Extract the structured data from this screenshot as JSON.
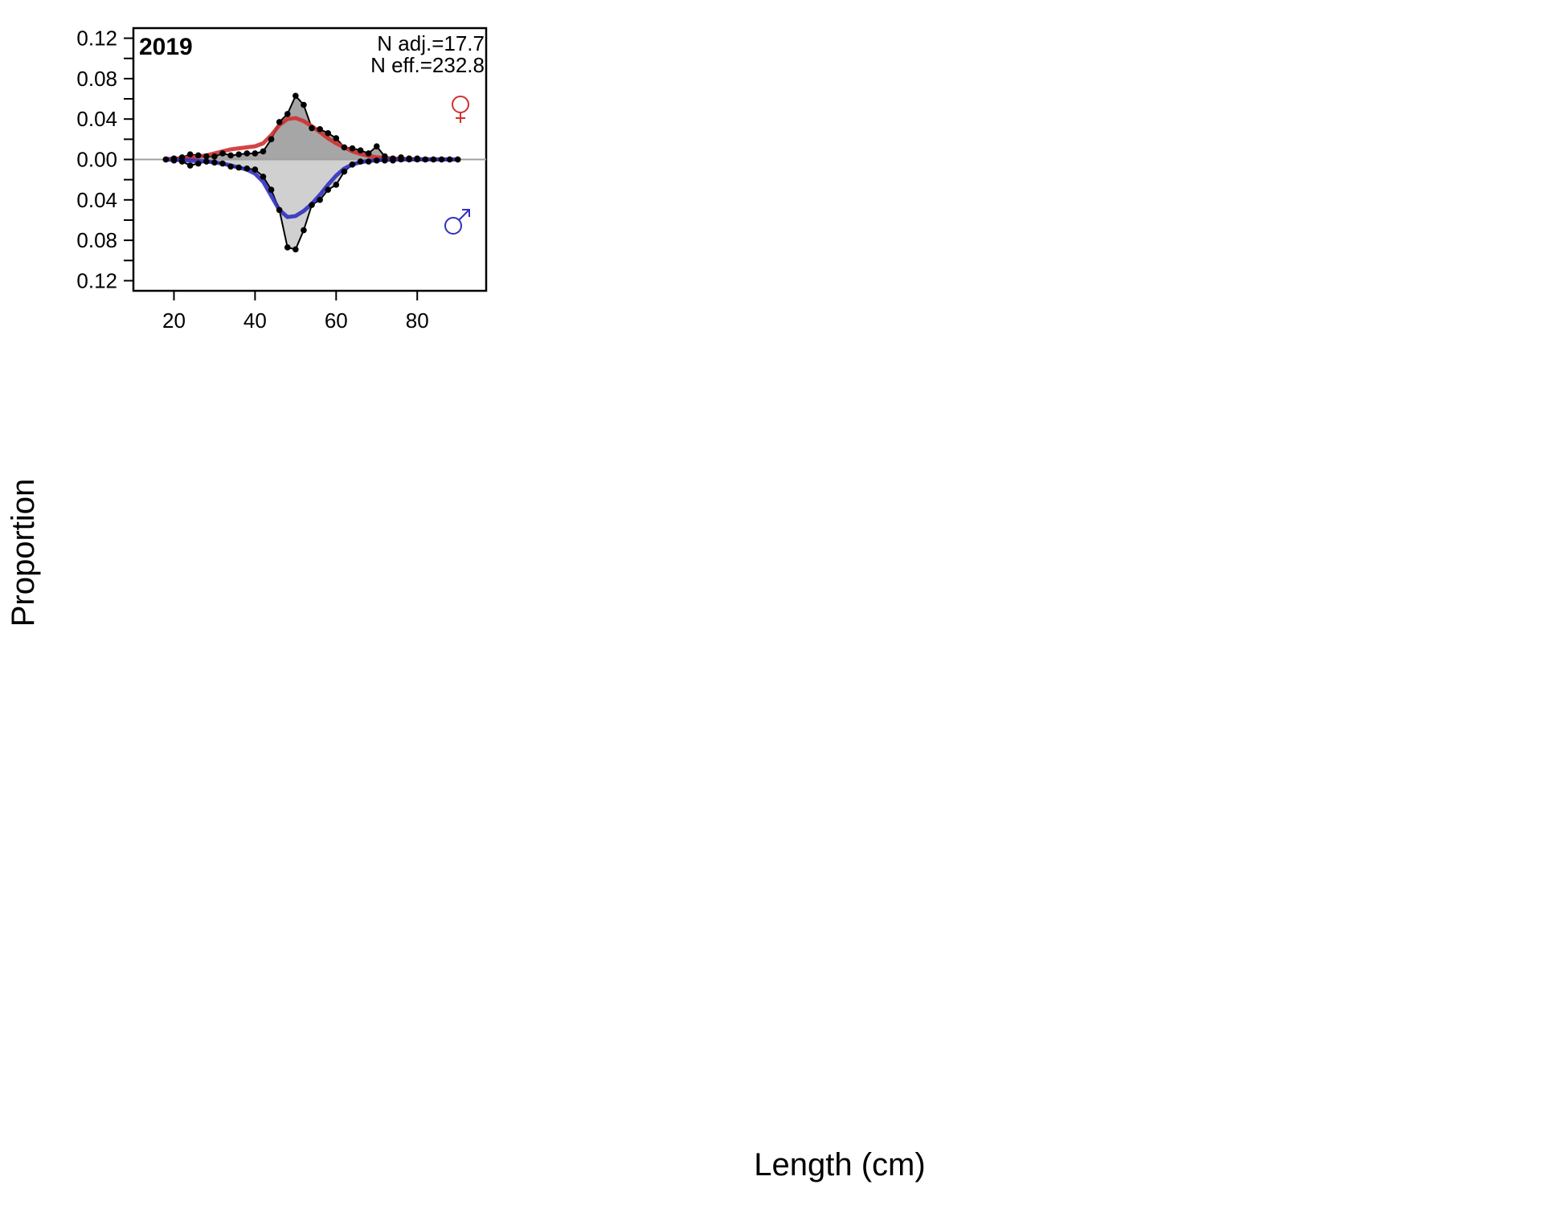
{
  "chart_data": {
    "type": "line",
    "xlabel": "Length (cm)",
    "ylabel": "Proportion",
    "panels": [
      {
        "year": "2019",
        "n_adj": "N adj.=17.7",
        "n_eff": "N eff.=232.8",
        "xlim": [
          10,
          97
        ],
        "ylim": [
          -0.13,
          0.13
        ],
        "x_ticks": [
          20,
          40,
          60,
          80
        ],
        "y_ticks": [
          0.12,
          0.08,
          0.04,
          0.0,
          -0.04,
          -0.08,
          -0.12
        ],
        "y_tick_labels": [
          "0.12",
          "0.08",
          "0.04",
          "0.00",
          "0.04",
          "0.08",
          "0.12"
        ],
        "y_minor_ticks": [
          0.1,
          0.06,
          0.02,
          -0.02,
          -0.06,
          -0.1
        ],
        "zero_line": true,
        "series": [
          {
            "name": "Female",
            "symbol": "♀",
            "color": "#D03030",
            "role": "observed",
            "x": [
              18,
              20,
              22,
              24,
              26,
              28,
              30,
              32,
              34,
              36,
              38,
              40,
              42,
              44,
              46,
              48,
              50,
              52,
              54,
              56,
              58,
              60,
              62,
              64,
              66,
              68,
              70,
              72,
              74,
              76,
              78,
              80,
              82,
              84,
              86,
              88,
              90
            ],
            "values": [
              0.0,
              0.001,
              0.002,
              0.005,
              0.004,
              0.003,
              0.003,
              0.006,
              0.004,
              0.005,
              0.006,
              0.006,
              0.008,
              0.02,
              0.037,
              0.045,
              0.063,
              0.054,
              0.031,
              0.03,
              0.026,
              0.021,
              0.012,
              0.011,
              0.009,
              0.006,
              0.013,
              0.003,
              0.001,
              0.002,
              0.001,
              0.001,
              0.0,
              0.0,
              0.0,
              0.0,
              0.0
            ]
          },
          {
            "name": "Female",
            "color": "#D03030",
            "role": "expected",
            "x": [
              18,
              20,
              22,
              24,
              26,
              28,
              30,
              32,
              34,
              36,
              38,
              40,
              42,
              44,
              46,
              48,
              50,
              52,
              54,
              56,
              58,
              60,
              62,
              64,
              66,
              68,
              70,
              72,
              74,
              76,
              78,
              80,
              82,
              84,
              86,
              88,
              90
            ],
            "values": [
              0.0005,
              0.0008,
              0.0012,
              0.002,
              0.003,
              0.004,
              0.006,
              0.008,
              0.01,
              0.011,
              0.012,
              0.013,
              0.016,
              0.024,
              0.034,
              0.04,
              0.041,
              0.038,
              0.033,
              0.027,
              0.021,
              0.016,
              0.012,
              0.008,
              0.0055,
              0.0035,
              0.0022,
              0.0014,
              0.0009,
              0.0006,
              0.0004,
              0.0003,
              0.0002,
              0.0001,
              0.0001,
              0.0,
              0.0
            ]
          },
          {
            "name": "Male",
            "symbol": "♂",
            "color": "#3030C0",
            "role": "observed",
            "x": [
              18,
              20,
              22,
              24,
              26,
              28,
              30,
              32,
              34,
              36,
              38,
              40,
              42,
              44,
              46,
              48,
              50,
              52,
              54,
              56,
              58,
              60,
              62,
              64,
              66,
              68,
              70,
              72,
              74,
              76,
              78,
              80,
              82,
              84,
              86,
              88,
              90
            ],
            "values": [
              0.0,
              -0.001,
              -0.002,
              -0.006,
              -0.004,
              -0.002,
              -0.003,
              -0.004,
              -0.007,
              -0.008,
              -0.009,
              -0.01,
              -0.017,
              -0.03,
              -0.05,
              -0.087,
              -0.089,
              -0.07,
              -0.045,
              -0.04,
              -0.03,
              -0.025,
              -0.012,
              -0.005,
              -0.002,
              -0.002,
              -0.001,
              -0.001,
              -0.001,
              0.0,
              0.0,
              0.0,
              0.0,
              0.0,
              0.0,
              0.0,
              0.0
            ]
          },
          {
            "name": "Male",
            "color": "#3030C0",
            "role": "expected",
            "x": [
              18,
              20,
              22,
              24,
              26,
              28,
              30,
              32,
              34,
              36,
              38,
              40,
              42,
              44,
              46,
              48,
              50,
              52,
              54,
              56,
              58,
              60,
              62,
              64,
              66,
              68,
              70,
              72,
              74,
              76,
              78,
              80,
              82,
              84,
              86,
              88,
              90
            ],
            "values": [
              -0.0002,
              -0.0004,
              -0.0006,
              -0.001,
              -0.0015,
              -0.002,
              -0.003,
              -0.004,
              -0.006,
              -0.008,
              -0.01,
              -0.014,
              -0.022,
              -0.036,
              -0.05,
              -0.057,
              -0.056,
              -0.051,
              -0.044,
              -0.035,
              -0.025,
              -0.016,
              -0.009,
              -0.005,
              -0.0028,
              -0.0015,
              -0.0008,
              -0.0004,
              -0.0002,
              -0.0001,
              0.0,
              0.0,
              0.0,
              0.0,
              0.0,
              0.0,
              0.0
            ]
          }
        ]
      }
    ]
  },
  "colors": {
    "female_fill": "#A6A6A6",
    "male_fill": "#D0D0D0",
    "zero_line": "#A0A0A0",
    "female_line": "#D03030",
    "male_line": "#3030C0"
  }
}
